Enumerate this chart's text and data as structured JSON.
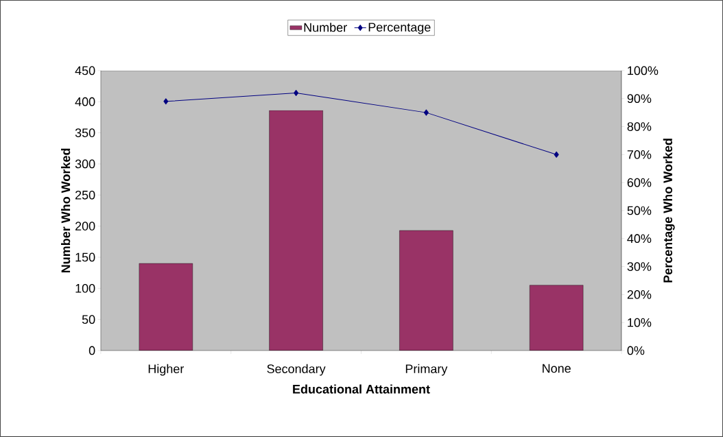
{
  "chart_data": {
    "type": "bar",
    "xlabel": "Educational Attainment",
    "ylabel": "Number Who Worked",
    "y2label": "Percentage Who Worked",
    "categories": [
      "Higher",
      "Secondary",
      "Primary",
      "None"
    ],
    "series": [
      {
        "name": "Number",
        "color": "#993366",
        "values": [
          140,
          386,
          193,
          105
        ]
      },
      {
        "name": "Percentage",
        "type": "line",
        "axis": "y2",
        "color": "#000080",
        "marker": "diamond",
        "values": [
          89,
          92,
          85,
          70
        ]
      }
    ],
    "ylim": [
      0,
      450
    ],
    "yticks": [
      0,
      50,
      100,
      150,
      200,
      250,
      300,
      350,
      400,
      450
    ],
    "y2lim": [
      0,
      100
    ],
    "y2ticks": [
      {
        "value": 0,
        "label": "0%"
      },
      {
        "value": 10,
        "label": "10%"
      },
      {
        "value": 20,
        "label": "20%"
      },
      {
        "value": 30,
        "label": "30%"
      },
      {
        "value": 40,
        "label": "40%"
      },
      {
        "value": 50,
        "label": "50%"
      },
      {
        "value": 60,
        "label": "60%"
      },
      {
        "value": 70,
        "label": "70%"
      },
      {
        "value": 80,
        "label": "80%"
      },
      {
        "value": 90,
        "label": "90%"
      },
      {
        "value": 100,
        "label": "100%"
      }
    ],
    "grid": false,
    "legend": "top"
  }
}
